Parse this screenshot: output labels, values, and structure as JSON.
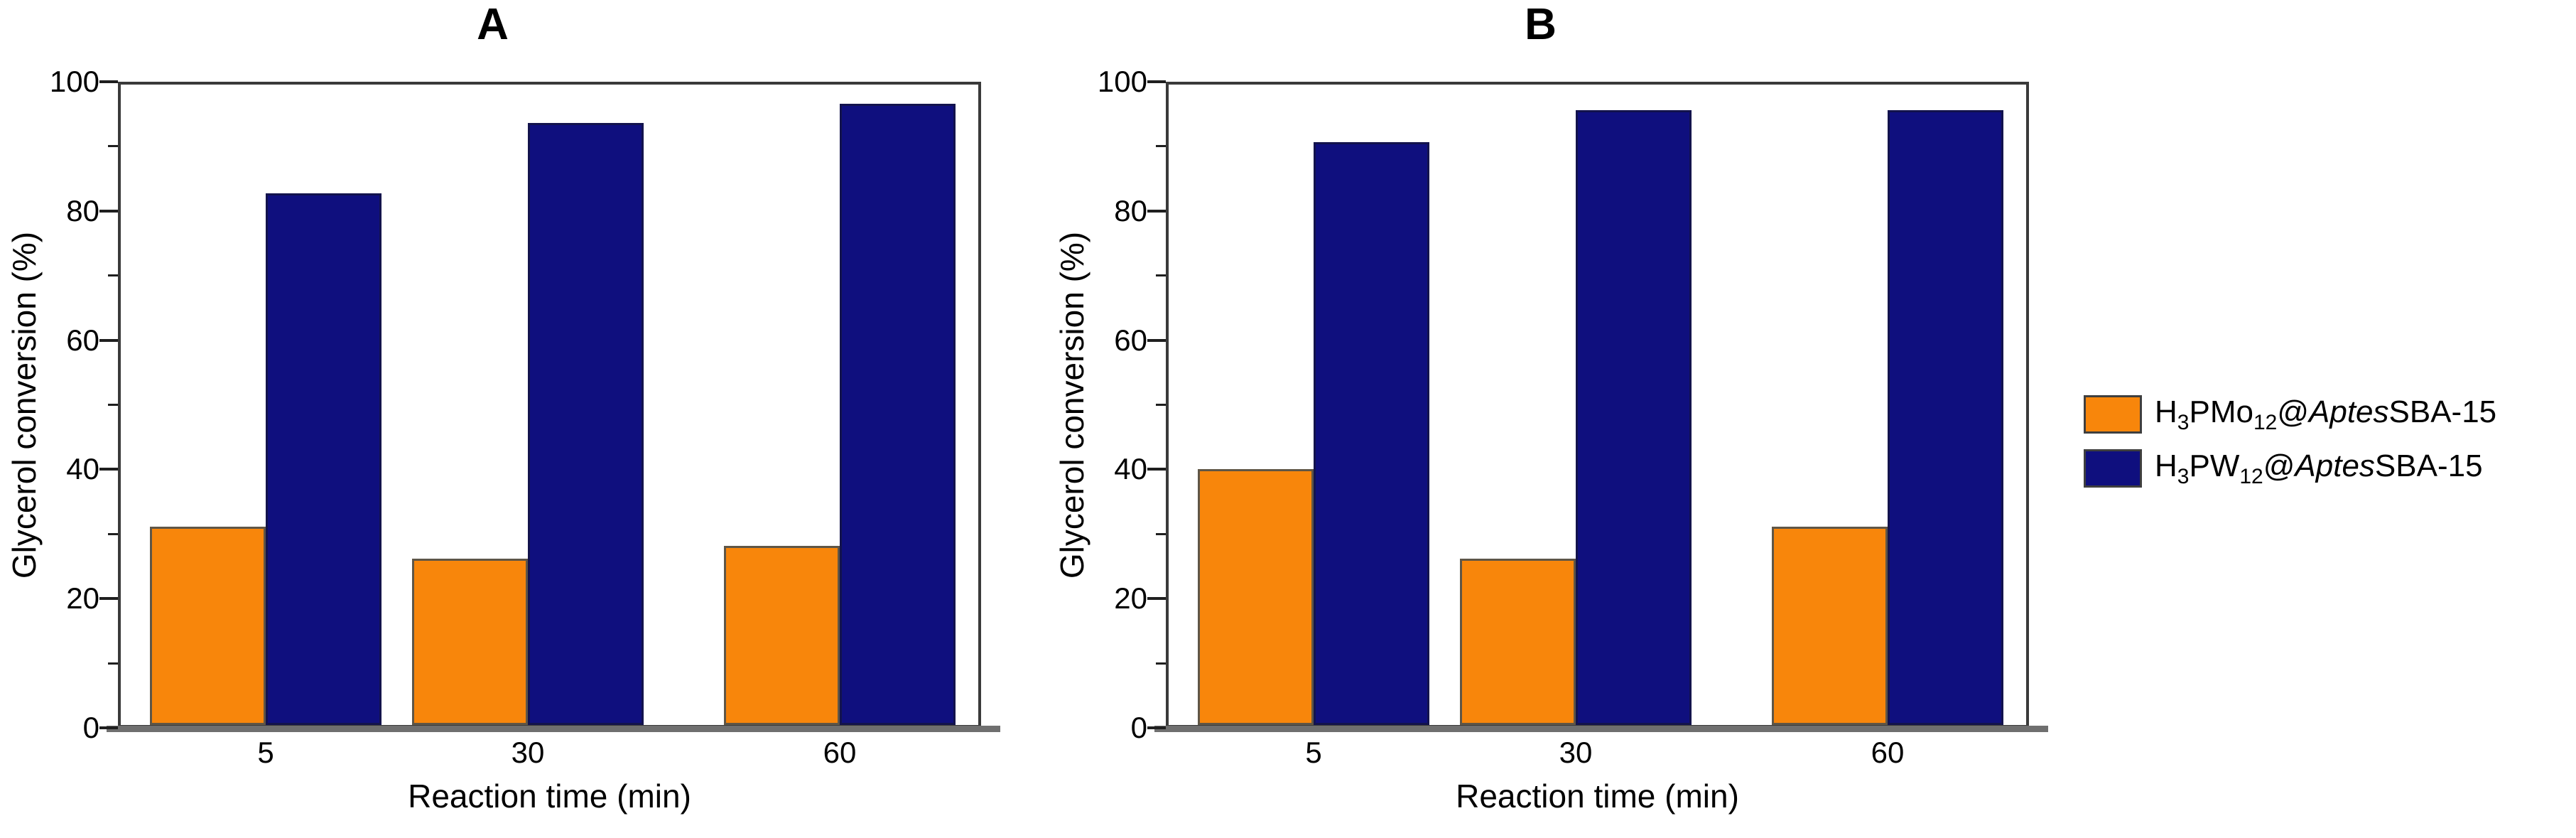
{
  "figure_title_a": "A",
  "figure_title_b": "B",
  "colors": {
    "orange_series": "#f8860b",
    "navy_series": "#0f0f7e",
    "axis": "#3a3a3a"
  },
  "legend": {
    "items": [
      {
        "swatch_color": "#f8860b",
        "plain_text": "H3PMo12@AptesSBA-15",
        "formula": {
          "el1": "H",
          "sub1": "3",
          "el2": "PMo",
          "sub2": "12",
          "sep": "@",
          "support_italic": "Aptes",
          "support": "SBA-15"
        }
      },
      {
        "swatch_color": "#0f0f7e",
        "plain_text": "H3PW12@AptesSBA-15",
        "formula": {
          "el1": "H",
          "sub1": "3",
          "el2": "PW",
          "sub2": "12",
          "sep": "@",
          "support_italic": "Aptes",
          "support": "SBA-15"
        }
      }
    ]
  },
  "chart_data": [
    {
      "type": "bar",
      "title": "A",
      "categories": [
        "5",
        "30",
        "60"
      ],
      "series": [
        {
          "name": "H3PMo12@AptesSBA-15",
          "color": "#f8860b",
          "border": "#5f5647",
          "values": [
            31,
            26,
            28
          ]
        },
        {
          "name": "H3PW12@AptesSBA-15",
          "color": "#0f0f7e",
          "border": "#13134d",
          "values": [
            83,
            94,
            97
          ]
        }
      ],
      "xlabel": "Reaction time (min)",
      "ylabel": "Glycerol conversion (%)",
      "ylim": [
        0,
        100
      ],
      "ytick_step": 20,
      "yminor_step": 10,
      "grid": false,
      "legend_position": "right-of-figure"
    },
    {
      "type": "bar",
      "title": "B",
      "categories": [
        "5",
        "30",
        "60"
      ],
      "series": [
        {
          "name": "H3PMo12@AptesSBA-15",
          "color": "#f8860b",
          "border": "#5f5647",
          "values": [
            40,
            26,
            31
          ]
        },
        {
          "name": "H3PW12@AptesSBA-15",
          "color": "#0f0f7e",
          "border": "#13134d",
          "values": [
            91,
            96,
            96
          ]
        }
      ],
      "xlabel": "Reaction time (min)",
      "ylabel": "Glycerol conversion (%)",
      "ylim": [
        0,
        100
      ],
      "ytick_step": 20,
      "yminor_step": 10,
      "grid": false,
      "legend_position": "right-of-figure"
    }
  ]
}
